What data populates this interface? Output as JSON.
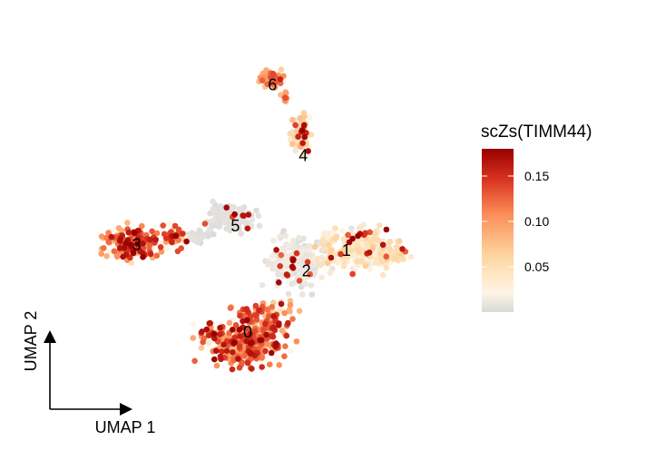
{
  "chart_data": {
    "type": "scatter",
    "title": "",
    "xlabel": "UMAP 1",
    "ylabel": "UMAP 2",
    "legend": {
      "title": "scZs(TIMM44)",
      "placement": "right",
      "range": [
        0.0,
        0.18
      ],
      "ticks": [
        "0.05",
        "0.10",
        "0.15"
      ],
      "tick_values": [
        0.05,
        0.1,
        0.15
      ],
      "colors": [
        "#d9d9d9",
        "#fff5e6",
        "#fdd49e",
        "#fc8d59",
        "#d7301f",
        "#990000"
      ]
    },
    "grid": false,
    "clusters": [
      {
        "label": "0",
        "x": 0.0,
        "y": -2.8,
        "value": 0.11
      },
      {
        "label": "1",
        "x": 3.2,
        "y": 1.6,
        "value": 0.04
      },
      {
        "label": "2",
        "x": 1.9,
        "y": 0.5,
        "value": 0.01
      },
      {
        "label": "3",
        "x": -3.6,
        "y": 1.9,
        "value": 0.12
      },
      {
        "label": "4",
        "x": 1.8,
        "y": 6.7,
        "value": 0.05
      },
      {
        "label": "5",
        "x": -0.4,
        "y": 2.9,
        "value": 0.005
      },
      {
        "label": "6",
        "x": 0.8,
        "y": 10.5,
        "value": 0.09
      }
    ]
  }
}
